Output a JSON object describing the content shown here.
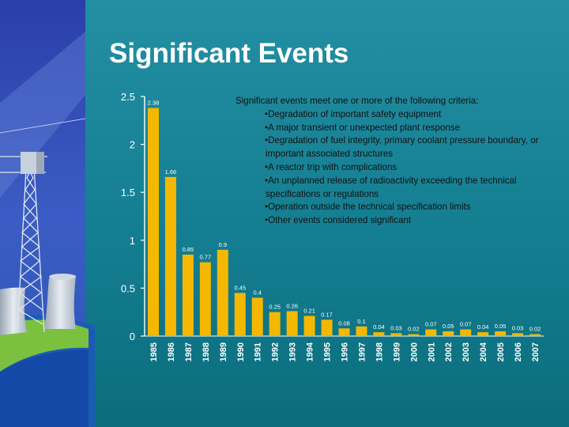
{
  "slide": {
    "title": "Significant Events"
  },
  "criteria": {
    "intro": "Significant events meet one or more of the following criteria:",
    "items": [
      "Degradation of important safety equipment",
      "A major transient or unexpected plant response",
      "Degradation of fuel integrity, primary coolant pressure boundary, or important associated structures",
      "A reactor trip with complications",
      "An unplanned release of radioactivity exceeding the technical specifications or regulations",
      "Operation outside the technical specification limits",
      "Other events considered significant"
    ]
  },
  "colors": {
    "bar": "#f5b800",
    "background_top": "#1f8aa0",
    "background_bottom": "#0c7383",
    "title": "#ffffff",
    "labels": "#ffffff"
  },
  "chart_data": {
    "type": "bar",
    "categories": [
      "1985",
      "1986",
      "1987",
      "1988",
      "1989",
      "1990",
      "1991",
      "1992",
      "1993",
      "1994",
      "1995",
      "1996",
      "1997",
      "1998",
      "1999",
      "2000",
      "2001",
      "2002",
      "2003",
      "2004",
      "2005",
      "2006",
      "2007"
    ],
    "values": [
      2.38,
      1.66,
      0.85,
      0.77,
      0.9,
      0.45,
      0.4,
      0.25,
      0.26,
      0.21,
      0.17,
      0.08,
      0.1,
      0.04,
      0.03,
      0.02,
      0.07,
      0.05,
      0.07,
      0.04,
      0.05,
      0.03,
      0.02
    ],
    "data_labels": [
      "2.38",
      "1.66",
      "0.85",
      "0.77",
      "0.9",
      "0.45",
      "0.4",
      "0.25",
      "0.26",
      "0.21",
      "0.17",
      "0.08",
      "0.1",
      "0.04",
      "0.03",
      "0.02",
      "0.07",
      "0.05",
      "0.07",
      "0.04",
      "0.05",
      "0.03",
      "0.02"
    ],
    "yticks": [
      "0",
      "0.5",
      "1",
      "1.5",
      "2",
      "2.5"
    ],
    "ylim": [
      0,
      2.5
    ],
    "title": "",
    "xlabel": "",
    "ylabel": "",
    "grid": false,
    "legend": "none"
  }
}
